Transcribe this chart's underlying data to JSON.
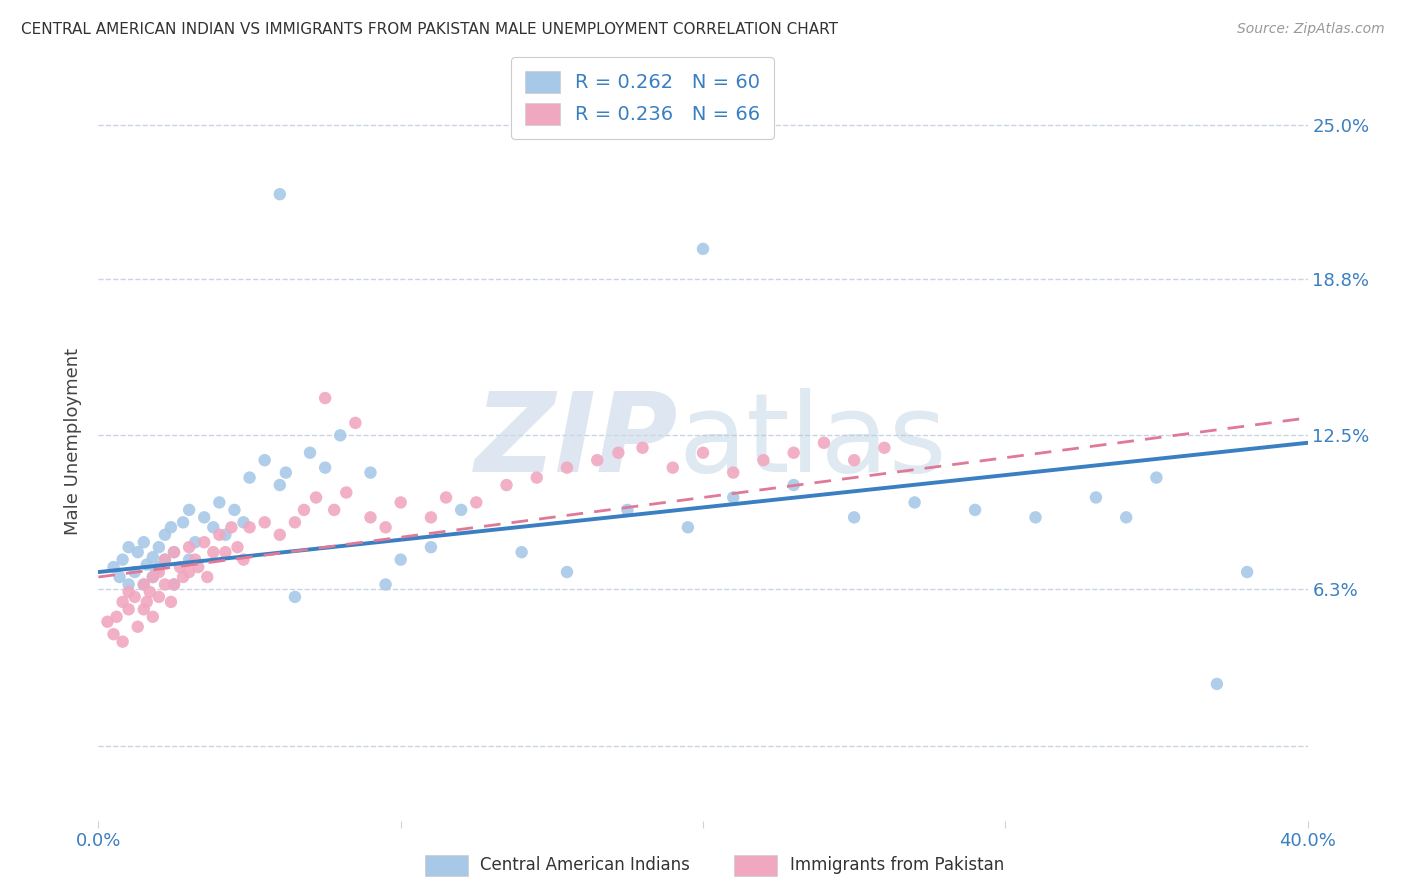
{
  "title": "CENTRAL AMERICAN INDIAN VS IMMIGRANTS FROM PAKISTAN MALE UNEMPLOYMENT CORRELATION CHART",
  "source": "Source: ZipAtlas.com",
  "ylabel": "Male Unemployment",
  "xlim": [
    0.0,
    0.4
  ],
  "ylim": [
    -0.03,
    0.275
  ],
  "yticks": [
    0.063,
    0.125,
    0.188,
    0.25
  ],
  "ytick_labels": [
    "6.3%",
    "12.5%",
    "18.8%",
    "25.0%"
  ],
  "blue_R": 0.262,
  "blue_N": 60,
  "pink_R": 0.236,
  "pink_N": 66,
  "blue_color": "#a8c8e8",
  "pink_color": "#f0a8c0",
  "blue_line_color": "#3a7fc1",
  "pink_line_color": "#e07898",
  "background_color": "#ffffff",
  "grid_color": "#c8d4e4",
  "blue_x": [
    0.005,
    0.007,
    0.008,
    0.01,
    0.01,
    0.012,
    0.013,
    0.015,
    0.015,
    0.016,
    0.018,
    0.018,
    0.019,
    0.02,
    0.02,
    0.022,
    0.022,
    0.024,
    0.025,
    0.025,
    0.028,
    0.03,
    0.03,
    0.032,
    0.035,
    0.038,
    0.04,
    0.042,
    0.045,
    0.048,
    0.05,
    0.055,
    0.06,
    0.062,
    0.065,
    0.07,
    0.075,
    0.08,
    0.09,
    0.095,
    0.1,
    0.11,
    0.12,
    0.14,
    0.155,
    0.175,
    0.195,
    0.21,
    0.23,
    0.25,
    0.27,
    0.29,
    0.31,
    0.33,
    0.34,
    0.35,
    0.37,
    0.38,
    0.06,
    0.2
  ],
  "blue_y": [
    0.072,
    0.068,
    0.075,
    0.08,
    0.065,
    0.07,
    0.078,
    0.082,
    0.065,
    0.073,
    0.076,
    0.068,
    0.071,
    0.08,
    0.072,
    0.085,
    0.075,
    0.088,
    0.078,
    0.065,
    0.09,
    0.095,
    0.075,
    0.082,
    0.092,
    0.088,
    0.098,
    0.085,
    0.095,
    0.09,
    0.108,
    0.115,
    0.105,
    0.11,
    0.06,
    0.118,
    0.112,
    0.125,
    0.11,
    0.065,
    0.075,
    0.08,
    0.095,
    0.078,
    0.07,
    0.095,
    0.088,
    0.1,
    0.105,
    0.092,
    0.098,
    0.095,
    0.092,
    0.1,
    0.092,
    0.108,
    0.025,
    0.07,
    0.222,
    0.2
  ],
  "pink_x": [
    0.003,
    0.005,
    0.006,
    0.008,
    0.008,
    0.01,
    0.01,
    0.012,
    0.013,
    0.015,
    0.015,
    0.016,
    0.017,
    0.018,
    0.018,
    0.02,
    0.02,
    0.022,
    0.022,
    0.024,
    0.025,
    0.025,
    0.027,
    0.028,
    0.03,
    0.03,
    0.032,
    0.033,
    0.035,
    0.036,
    0.038,
    0.04,
    0.042,
    0.044,
    0.046,
    0.048,
    0.05,
    0.055,
    0.06,
    0.065,
    0.068,
    0.072,
    0.078,
    0.082,
    0.09,
    0.095,
    0.1,
    0.11,
    0.115,
    0.125,
    0.135,
    0.145,
    0.155,
    0.165,
    0.172,
    0.18,
    0.19,
    0.2,
    0.21,
    0.22,
    0.23,
    0.24,
    0.25,
    0.26,
    0.075,
    0.085
  ],
  "pink_y": [
    0.05,
    0.045,
    0.052,
    0.058,
    0.042,
    0.055,
    0.062,
    0.06,
    0.048,
    0.065,
    0.055,
    0.058,
    0.062,
    0.068,
    0.052,
    0.07,
    0.06,
    0.075,
    0.065,
    0.058,
    0.078,
    0.065,
    0.072,
    0.068,
    0.08,
    0.07,
    0.075,
    0.072,
    0.082,
    0.068,
    0.078,
    0.085,
    0.078,
    0.088,
    0.08,
    0.075,
    0.088,
    0.09,
    0.085,
    0.09,
    0.095,
    0.1,
    0.095,
    0.102,
    0.092,
    0.088,
    0.098,
    0.092,
    0.1,
    0.098,
    0.105,
    0.108,
    0.112,
    0.115,
    0.118,
    0.12,
    0.112,
    0.118,
    0.11,
    0.115,
    0.118,
    0.122,
    0.115,
    0.12,
    0.14,
    0.13
  ],
  "blue_line_start_y": 0.07,
  "blue_line_end_y": 0.122,
  "pink_line_start_y": 0.068,
  "pink_line_end_y": 0.132
}
